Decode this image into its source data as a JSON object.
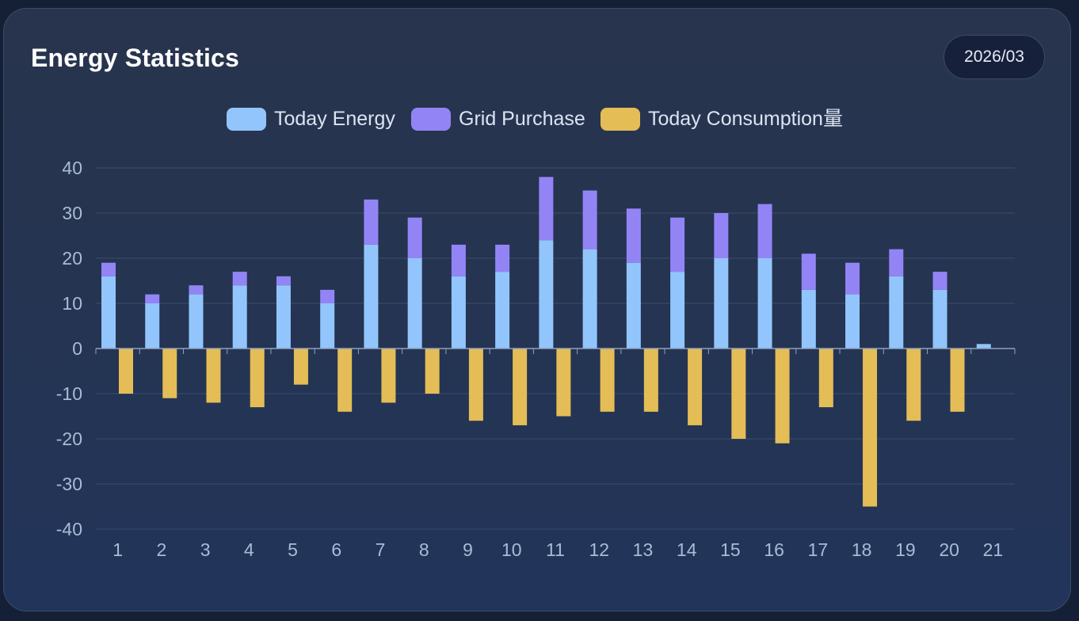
{
  "header": {
    "title": "Energy Statistics",
    "date": "2026/03"
  },
  "colors": {
    "today_energy": "#93c5fd",
    "grid_purchase": "#9384f6",
    "today_consumption": "#e4bd57",
    "gridline": "#3c4d6a",
    "tick_label": "#a9bbd6"
  },
  "chart_data": {
    "type": "bar",
    "title": "",
    "xlabel": "",
    "ylabel": "",
    "ylim": [
      -40,
      40
    ],
    "yticks": [
      40,
      30,
      20,
      10,
      0,
      -10,
      -20,
      -30,
      -40
    ],
    "yticklabels": [
      "40",
      "30",
      "20",
      "10",
      "0",
      "-10",
      "-20",
      "-30",
      "-40"
    ],
    "categories": [
      "1",
      "2",
      "3",
      "4",
      "5",
      "6",
      "7",
      "8",
      "9",
      "10",
      "11",
      "12",
      "13",
      "14",
      "15",
      "16",
      "17",
      "18",
      "19",
      "20",
      "21"
    ],
    "grid": true,
    "legend_position": "top-center",
    "series": [
      {
        "name": "Today Energy",
        "stack": "positive",
        "values": [
          16,
          10,
          12,
          14,
          14,
          10,
          23,
          20,
          16,
          17,
          24,
          22,
          19,
          17,
          20,
          20,
          13,
          12,
          16,
          13,
          1
        ]
      },
      {
        "name": "Grid Purchase",
        "stack": "positive",
        "values": [
          3,
          2,
          2,
          3,
          2,
          3,
          10,
          9,
          7,
          6,
          14,
          13,
          12,
          12,
          10,
          12,
          8,
          7,
          6,
          4,
          0
        ]
      },
      {
        "name": "Today Consumption量",
        "stack": "negative",
        "values": [
          -10,
          -11,
          -12,
          -13,
          -8,
          -14,
          -12,
          -10,
          -16,
          -17,
          -15,
          -14,
          -14,
          -17,
          -20,
          -21,
          -13,
          -35,
          -16,
          -14,
          0
        ]
      }
    ]
  }
}
